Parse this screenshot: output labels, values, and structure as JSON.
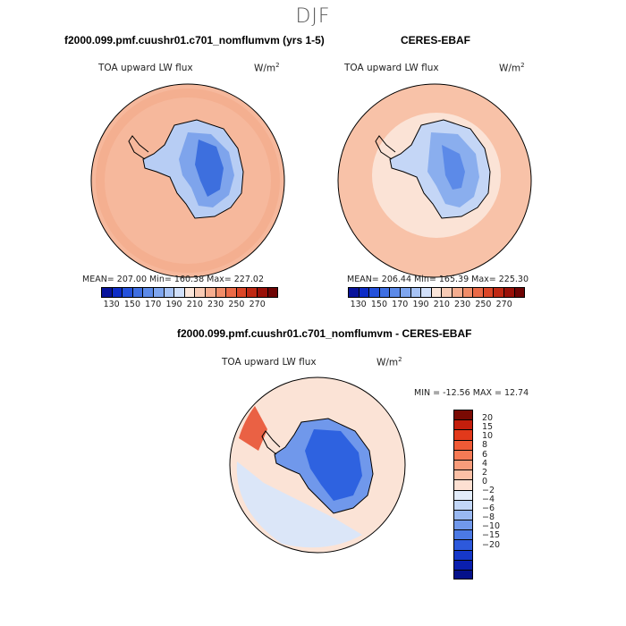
{
  "page_title": "DJF",
  "colors": {
    "sea_model": "#f6b89c",
    "sea_obs": "#f8c2a8",
    "sea_diff": "#fbe3d6",
    "ice_light": "#b7cdf4",
    "ice_mid": "#7ea4ec",
    "ice_dark": "#3d6fde",
    "diff_blue": "#2e62e0",
    "diff_red": "#e64a2a",
    "outline": "#000000"
  },
  "chart_data": [
    {
      "type": "heatmap",
      "panel": "top-left",
      "title": "f2000.099.pmf.cuushr01.c701_nomflumvm (yrs 1-5)",
      "field_label": "TOA upward LW flux",
      "units_prefix": "W/m",
      "units_exp": "2",
      "stats": {
        "mean": "207.00",
        "min": "160.38",
        "max": "227.02"
      },
      "stats_text": "MEAN= 207.00   Min= 160.38   Max= 227.02",
      "colorbar": {
        "colors": [
          "#08139b",
          "#0d2cc6",
          "#2451dc",
          "#3f6fe2",
          "#5c8ae8",
          "#7fa6ef",
          "#a7c3f5",
          "#d1e0fa",
          "#fbe6da",
          "#f8cbb5",
          "#f5ad8f",
          "#f08d69",
          "#ea6a47",
          "#db4627",
          "#bf2813",
          "#991008",
          "#6e0404"
        ],
        "ticks": [
          "130",
          "150",
          "170",
          "190",
          "210",
          "230",
          "250",
          "270"
        ]
      }
    },
    {
      "type": "heatmap",
      "panel": "top-right",
      "title": "CERES-EBAF",
      "field_label": "TOA upward LW flux",
      "units_prefix": "W/m",
      "units_exp": "2",
      "stats": {
        "mean": "206.44",
        "min": "165.39",
        "max": "225.30"
      },
      "stats_text": "MEAN= 206.44   Min= 165.39   Max= 225.30",
      "colorbar": {
        "colors": [
          "#08139b",
          "#0d2cc6",
          "#2451dc",
          "#3f6fe2",
          "#5c8ae8",
          "#7fa6ef",
          "#a7c3f5",
          "#d1e0fa",
          "#fbe6da",
          "#f8cbb5",
          "#f5ad8f",
          "#f08d69",
          "#ea6a47",
          "#db4627",
          "#bf2813",
          "#991008",
          "#6e0404"
        ],
        "ticks": [
          "130",
          "150",
          "170",
          "190",
          "210",
          "230",
          "250",
          "270"
        ]
      }
    },
    {
      "type": "heatmap",
      "panel": "bottom",
      "title": "f2000.099.pmf.cuushr01.c701_nomflumvm - CERES-EBAF",
      "field_label": "TOA upward LW flux",
      "units_prefix": "W/m",
      "units_exp": "2",
      "stats": {
        "min": "-12.56",
        "max": "12.74"
      },
      "stats_text": "MIN = -12.56  MAX =  12.74",
      "colorbar": {
        "colors": [
          "#7a0a03",
          "#c41e0c",
          "#e2391b",
          "#ef5a36",
          "#f57a55",
          "#f89c7b",
          "#fbc0a6",
          "#fde0d2",
          "#e2ecfa",
          "#c2d6f6",
          "#99b8f1",
          "#7098eb",
          "#4b79e4",
          "#2d59dc",
          "#1638c9",
          "#0a1fae",
          "#05118a"
        ],
        "ticks": [
          "20",
          "15",
          "10",
          "8",
          "6",
          "4",
          "2",
          "0",
          "−2",
          "−4",
          "−6",
          "−8",
          "−10",
          "−15",
          "−20"
        ]
      }
    }
  ]
}
